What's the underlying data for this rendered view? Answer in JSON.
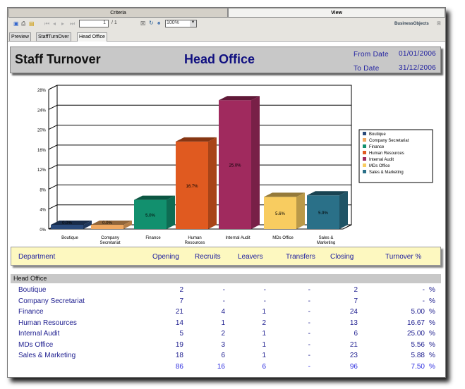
{
  "tabs": [
    "Criteria",
    "View"
  ],
  "toolbar": {
    "page_value": "1",
    "page_total": "/ 1",
    "zoom": "100%",
    "brand": "BusinessObjects"
  },
  "subtabs": [
    "Preview",
    "StaffTurnOver",
    "Head Office"
  ],
  "report": {
    "title": "Staff Turnover",
    "office": "Head Office",
    "from_label": "From Date",
    "from_value": "01/01/2006",
    "to_label": "To Date",
    "to_value": "31/12/2006"
  },
  "chart_data": {
    "type": "bar",
    "categories": [
      "Boutique",
      "Company Secretariat",
      "Finance",
      "Human Resources",
      "Internal Audit",
      "MDs Office",
      "Sales & Marketing"
    ],
    "values": [
      0.0,
      0.0,
      5.0,
      16.7,
      25.0,
      5.6,
      5.9
    ],
    "data_labels": [
      "0.0%",
      "0.0%",
      "5.0%",
      "16.7%",
      "25.0%",
      "5.6%",
      "5.9%"
    ],
    "ylim": [
      0,
      28
    ],
    "yticks": [
      "0%",
      "4%",
      "8%",
      "12%",
      "16%",
      "20%",
      "24%",
      "28%"
    ],
    "colors": [
      "#2a4a7a",
      "#f0a860",
      "#12906e",
      "#e05a20",
      "#a02a5e",
      "#f8cc60",
      "#2a7088"
    ],
    "grid": true,
    "legend": "right",
    "legend_entries": [
      "Boutique",
      "Company Secretariat",
      "Finance",
      "Human Resources",
      "Internal Audit",
      "MDs Office",
      "Sales & Marketing"
    ]
  },
  "table": {
    "headers": [
      "Department",
      "Opening",
      "Recruits",
      "Leavers",
      "Transfers",
      "Closing",
      "Turnover %"
    ],
    "group": "Head Office",
    "rows": [
      [
        "Boutique",
        "2",
        "-",
        "-",
        "-",
        "2",
        "-",
        "%"
      ],
      [
        "Company Secretariat",
        "7",
        "-",
        "-",
        "-",
        "7",
        "-",
        "%"
      ],
      [
        "Finance",
        "21",
        "4",
        "1",
        "-",
        "24",
        "5.00",
        "%"
      ],
      [
        "Human Resources",
        "14",
        "1",
        "2",
        "-",
        "13",
        "16.67",
        "%"
      ],
      [
        "Internal Audit",
        "5",
        "2",
        "1",
        "-",
        "6",
        "25.00",
        "%"
      ],
      [
        "MDs Office",
        "19",
        "3",
        "1",
        "-",
        "21",
        "5.56",
        "%"
      ],
      [
        "Sales & Marketing",
        "18",
        "6",
        "1",
        "-",
        "23",
        "5.88",
        "%"
      ]
    ],
    "total": [
      "",
      "86",
      "16",
      "6",
      "-",
      "96",
      "7.50",
      "%"
    ]
  }
}
